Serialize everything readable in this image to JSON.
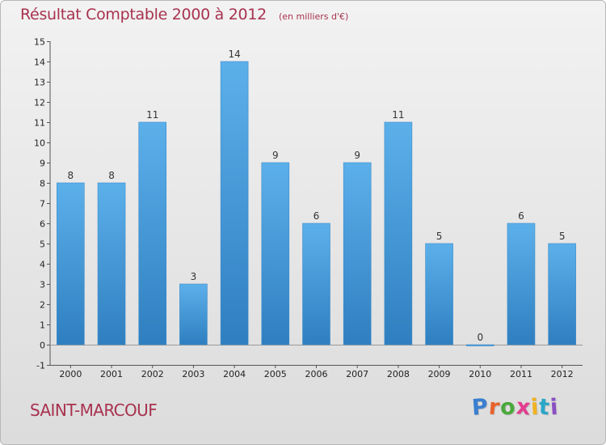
{
  "chart_data": {
    "type": "bar",
    "title": "Résultat Comptable 2000 à 2012",
    "subtitle": "(en milliers d'€)",
    "categories": [
      "2000",
      "2001",
      "2002",
      "2003",
      "2004",
      "2005",
      "2006",
      "2007",
      "2008",
      "2009",
      "2010",
      "2011",
      "2012"
    ],
    "values": [
      8,
      8,
      11,
      3,
      14,
      9,
      6,
      9,
      11,
      5,
      0,
      6,
      5
    ],
    "data_labels": [
      "8",
      "8",
      "11",
      "3",
      "14",
      "9",
      "6",
      "9",
      "11",
      "5",
      "0",
      "6",
      "5"
    ],
    "ylim": [
      -1,
      15
    ],
    "yticks": [
      -1,
      0,
      1,
      2,
      3,
      4,
      5,
      6,
      7,
      8,
      9,
      10,
      11,
      12,
      13,
      14,
      15
    ],
    "ytick_labels": [
      "-1",
      "0",
      "1",
      "2",
      "3",
      "4",
      "5",
      "6",
      "7",
      "8",
      "9",
      "10",
      "11",
      "12",
      "13",
      "14",
      "15"
    ],
    "xlabel": "",
    "ylabel": "",
    "bar_color": "#4d9fdf",
    "grid": false,
    "legend": "none"
  },
  "footer": {
    "place_name": "SAINT-MARCOUF",
    "brand": "Proxiti",
    "brand_colors": [
      "#3a7fd0",
      "#e8622a",
      "#4aa83c",
      "#e23d8f",
      "#f0b21f",
      "#2aa6c8",
      "#8a4fc3"
    ]
  }
}
